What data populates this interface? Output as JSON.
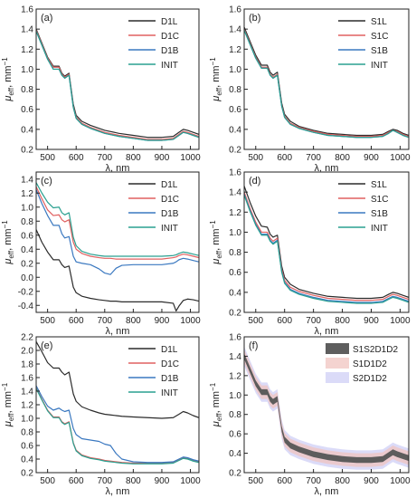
{
  "figure": {
    "x_tick_labels": [
      "500",
      "600",
      "700",
      "800",
      "900",
      "1000"
    ],
    "x_axis_label": "λ, nm",
    "y_axis_label_main": "μ",
    "y_axis_label_sub": "eff",
    "y_axis_label_unit": ", mm",
    "y_axis_label_exp": "−1"
  },
  "chart_data": [
    {
      "panel": "(a)",
      "type": "line",
      "xlim": [
        460,
        1030
      ],
      "ylim": [
        0.2,
        1.6
      ],
      "yticks": [
        0.2,
        0.4,
        0.6,
        0.8,
        1.0,
        1.2,
        1.4,
        1.6
      ],
      "ytick_labels": [
        "0.2",
        "0.4",
        "0.6",
        "0.8",
        "1.0",
        "1.2",
        "1.4",
        "1.6"
      ],
      "legend": "top-right",
      "x": [
        460,
        480,
        500,
        520,
        540,
        550,
        560,
        575,
        590,
        600,
        620,
        650,
        700,
        750,
        800,
        850,
        900,
        940,
        960,
        975,
        990,
        1010,
        1030
      ],
      "series": [
        {
          "name": "D1L",
          "color": "#2b2b2b",
          "values": [
            1.4,
            1.26,
            1.12,
            1.03,
            1.03,
            0.96,
            0.93,
            0.96,
            0.65,
            0.54,
            0.48,
            0.44,
            0.39,
            0.36,
            0.34,
            0.32,
            0.32,
            0.33,
            0.37,
            0.4,
            0.39,
            0.37,
            0.35
          ]
        },
        {
          "name": "D1C",
          "color": "#e06060",
          "values": [
            1.39,
            1.25,
            1.11,
            1.02,
            1.02,
            0.95,
            0.92,
            0.95,
            0.63,
            0.52,
            0.46,
            0.42,
            0.37,
            0.34,
            0.32,
            0.3,
            0.3,
            0.31,
            0.35,
            0.38,
            0.37,
            0.35,
            0.33
          ]
        },
        {
          "name": "D1B",
          "color": "#3a78c0",
          "values": [
            1.38,
            1.24,
            1.1,
            1.0,
            1.0,
            0.94,
            0.91,
            0.94,
            0.62,
            0.51,
            0.45,
            0.41,
            0.36,
            0.33,
            0.31,
            0.29,
            0.29,
            0.3,
            0.34,
            0.37,
            0.36,
            0.34,
            0.32
          ]
        },
        {
          "name": "INIT",
          "color": "#2aa090",
          "values": [
            1.38,
            1.24,
            1.1,
            1.0,
            1.0,
            0.94,
            0.91,
            0.94,
            0.62,
            0.51,
            0.45,
            0.41,
            0.36,
            0.33,
            0.31,
            0.29,
            0.29,
            0.3,
            0.34,
            0.37,
            0.36,
            0.34,
            0.32
          ]
        }
      ]
    },
    {
      "panel": "(b)",
      "type": "line",
      "xlim": [
        460,
        1030
      ],
      "ylim": [
        0.2,
        1.6
      ],
      "yticks": [
        0.2,
        0.4,
        0.6,
        0.8,
        1.0,
        1.2,
        1.4,
        1.6
      ],
      "ytick_labels": [
        "0.2",
        "0.4",
        "0.6",
        "0.8",
        "1.0",
        "1.2",
        "1.4",
        "1.6"
      ],
      "legend": "top-right",
      "x": [
        460,
        480,
        500,
        520,
        540,
        550,
        560,
        575,
        590,
        600,
        620,
        650,
        700,
        750,
        800,
        850,
        900,
        940,
        960,
        975,
        990,
        1010,
        1030
      ],
      "series": [
        {
          "name": "S1L",
          "color": "#2b2b2b",
          "values": [
            1.42,
            1.28,
            1.14,
            1.04,
            1.04,
            0.97,
            0.94,
            0.97,
            0.66,
            0.55,
            0.48,
            0.43,
            0.39,
            0.36,
            0.35,
            0.34,
            0.34,
            0.35,
            0.38,
            0.4,
            0.39,
            0.36,
            0.34
          ]
        },
        {
          "name": "S1C",
          "color": "#e06060",
          "values": [
            1.4,
            1.26,
            1.12,
            1.02,
            1.02,
            0.95,
            0.92,
            0.95,
            0.64,
            0.53,
            0.46,
            0.42,
            0.38,
            0.35,
            0.34,
            0.33,
            0.33,
            0.34,
            0.37,
            0.39,
            0.38,
            0.35,
            0.33
          ]
        },
        {
          "name": "S1B",
          "color": "#3a78c0",
          "values": [
            1.39,
            1.25,
            1.11,
            1.01,
            1.01,
            0.94,
            0.91,
            0.94,
            0.63,
            0.52,
            0.45,
            0.41,
            0.37,
            0.34,
            0.33,
            0.32,
            0.32,
            0.33,
            0.36,
            0.39,
            0.37,
            0.34,
            0.32
          ]
        },
        {
          "name": "INIT",
          "color": "#2aa090",
          "values": [
            1.39,
            1.25,
            1.11,
            1.01,
            1.01,
            0.94,
            0.91,
            0.94,
            0.63,
            0.52,
            0.45,
            0.41,
            0.37,
            0.34,
            0.33,
            0.32,
            0.32,
            0.33,
            0.36,
            0.39,
            0.37,
            0.34,
            0.32
          ]
        }
      ]
    },
    {
      "panel": "(c)",
      "type": "line",
      "xlim": [
        460,
        1030
      ],
      "ylim": [
        -0.5,
        1.5
      ],
      "yticks": [
        -0.4,
        -0.2,
        0.0,
        0.2,
        0.4,
        0.6,
        0.8,
        1.0,
        1.2,
        1.4
      ],
      "ytick_labels": [
        "-0.4",
        "-0.2",
        "0.0",
        "0.2",
        "0.4",
        "0.6",
        "0.8",
        "1.0",
        "1.2",
        "1.4"
      ],
      "legend": "top-right",
      "x": [
        460,
        480,
        500,
        520,
        540,
        550,
        560,
        575,
        590,
        600,
        620,
        650,
        680,
        700,
        720,
        740,
        760,
        800,
        850,
        900,
        940,
        950,
        960,
        975,
        990,
        1010,
        1030
      ],
      "series": [
        {
          "name": "D1L",
          "color": "#2b2b2b",
          "values": [
            0.68,
            0.5,
            0.36,
            0.25,
            0.25,
            0.18,
            0.14,
            0.16,
            -0.14,
            -0.22,
            -0.27,
            -0.3,
            -0.32,
            -0.33,
            -0.34,
            -0.34,
            -0.35,
            -0.35,
            -0.35,
            -0.35,
            -0.37,
            -0.48,
            -0.41,
            -0.33,
            -0.31,
            -0.32,
            -0.34
          ]
        },
        {
          "name": "D1C",
          "color": "#e06060",
          "values": [
            1.29,
            1.12,
            0.96,
            0.88,
            0.89,
            0.82,
            0.79,
            0.82,
            0.5,
            0.4,
            0.34,
            0.3,
            0.28,
            0.27,
            0.27,
            0.26,
            0.26,
            0.26,
            0.26,
            0.26,
            0.28,
            0.29,
            0.31,
            0.33,
            0.32,
            0.3,
            0.28
          ]
        },
        {
          "name": "D1B",
          "color": "#3a78c0",
          "values": [
            1.25,
            1.05,
            0.88,
            0.74,
            0.74,
            0.62,
            0.56,
            0.58,
            0.3,
            0.22,
            0.2,
            0.18,
            0.12,
            0.06,
            0.04,
            0.13,
            0.17,
            0.18,
            0.18,
            0.18,
            0.2,
            0.22,
            0.25,
            0.27,
            0.26,
            0.24,
            0.22
          ]
        },
        {
          "name": "INIT",
          "color": "#2aa090",
          "values": [
            1.35,
            1.2,
            1.07,
            0.99,
            1.0,
            0.92,
            0.89,
            0.92,
            0.57,
            0.45,
            0.37,
            0.33,
            0.31,
            0.3,
            0.3,
            0.3,
            0.3,
            0.3,
            0.3,
            0.3,
            0.31,
            0.32,
            0.34,
            0.36,
            0.35,
            0.33,
            0.31
          ]
        }
      ]
    },
    {
      "panel": "(d)",
      "type": "line",
      "xlim": [
        460,
        1030
      ],
      "ylim": [
        0.2,
        1.6
      ],
      "yticks": [
        0.2,
        0.4,
        0.6,
        0.8,
        1.0,
        1.2,
        1.4,
        1.6
      ],
      "ytick_labels": [
        "0.2",
        "0.4",
        "0.6",
        "0.8",
        "1.0",
        "1.2",
        "1.4",
        "1.6"
      ],
      "legend": "top-right",
      "x": [
        460,
        480,
        500,
        520,
        540,
        550,
        560,
        575,
        590,
        600,
        620,
        650,
        700,
        750,
        800,
        850,
        900,
        940,
        960,
        975,
        990,
        1010,
        1030
      ],
      "series": [
        {
          "name": "S1L",
          "color": "#2b2b2b",
          "values": [
            1.46,
            1.3,
            1.16,
            1.06,
            1.05,
            0.98,
            0.95,
            0.97,
            0.66,
            0.55,
            0.48,
            0.43,
            0.39,
            0.36,
            0.35,
            0.34,
            0.34,
            0.35,
            0.38,
            0.4,
            0.39,
            0.37,
            0.35
          ]
        },
        {
          "name": "S1C",
          "color": "#e06060",
          "values": [
            1.4,
            1.24,
            1.1,
            1.0,
            1.0,
            0.94,
            0.91,
            0.94,
            0.63,
            0.52,
            0.45,
            0.41,
            0.37,
            0.34,
            0.33,
            0.32,
            0.32,
            0.33,
            0.36,
            0.38,
            0.37,
            0.35,
            0.33
          ]
        },
        {
          "name": "S1B",
          "color": "#3a78c0",
          "values": [
            1.38,
            1.22,
            1.08,
            0.98,
            0.98,
            0.92,
            0.89,
            0.92,
            0.61,
            0.5,
            0.43,
            0.39,
            0.35,
            0.32,
            0.31,
            0.3,
            0.3,
            0.31,
            0.34,
            0.36,
            0.35,
            0.33,
            0.31
          ]
        },
        {
          "name": "INIT",
          "color": "#2aa090",
          "values": [
            1.37,
            1.21,
            1.07,
            0.97,
            0.97,
            0.91,
            0.88,
            0.91,
            0.6,
            0.49,
            0.42,
            0.38,
            0.34,
            0.31,
            0.3,
            0.29,
            0.29,
            0.3,
            0.33,
            0.35,
            0.34,
            0.32,
            0.3
          ]
        }
      ]
    },
    {
      "panel": "(e)",
      "type": "line",
      "xlim": [
        460,
        1030
      ],
      "ylim": [
        0.2,
        2.2
      ],
      "yticks": [
        0.2,
        0.4,
        0.6,
        0.8,
        1.0,
        1.2,
        1.4,
        1.6,
        1.8,
        2.0,
        2.2
      ],
      "ytick_labels": [
        "0.2",
        "0.4",
        "0.6",
        "0.8",
        "1.0",
        "1.2",
        "1.4",
        "1.6",
        "1.8",
        "2.0",
        "2.2"
      ],
      "legend": "top-right",
      "x": [
        460,
        480,
        500,
        520,
        540,
        550,
        560,
        575,
        590,
        600,
        620,
        650,
        680,
        700,
        720,
        740,
        760,
        800,
        850,
        900,
        940,
        960,
        975,
        990,
        1010,
        1030
      ],
      "series": [
        {
          "name": "D1L",
          "color": "#2b2b2b",
          "values": [
            2.13,
            1.98,
            1.82,
            1.74,
            1.74,
            1.68,
            1.64,
            1.68,
            1.36,
            1.25,
            1.17,
            1.12,
            1.08,
            1.06,
            1.05,
            1.04,
            1.03,
            1.02,
            1.01,
            1.0,
            1.01,
            1.06,
            1.1,
            1.08,
            1.04,
            1.01
          ]
        },
        {
          "name": "D1C",
          "color": "#e06060",
          "values": [
            1.45,
            1.28,
            1.12,
            1.02,
            1.02,
            0.95,
            0.92,
            0.95,
            0.64,
            0.53,
            0.46,
            0.42,
            0.4,
            0.38,
            0.37,
            0.36,
            0.35,
            0.34,
            0.34,
            0.34,
            0.35,
            0.39,
            0.42,
            0.41,
            0.38,
            0.36
          ]
        },
        {
          "name": "D1B",
          "color": "#3a78c0",
          "values": [
            1.48,
            1.32,
            1.18,
            1.12,
            1.15,
            1.12,
            1.1,
            1.12,
            0.85,
            0.76,
            0.7,
            0.68,
            0.66,
            0.62,
            0.6,
            0.48,
            0.4,
            0.36,
            0.35,
            0.35,
            0.36,
            0.4,
            0.43,
            0.42,
            0.39,
            0.37
          ]
        },
        {
          "name": "INIT",
          "color": "#2aa090",
          "values": [
            1.44,
            1.27,
            1.11,
            1.01,
            1.01,
            0.94,
            0.91,
            0.94,
            0.63,
            0.52,
            0.45,
            0.41,
            0.39,
            0.37,
            0.36,
            0.35,
            0.34,
            0.33,
            0.33,
            0.33,
            0.34,
            0.38,
            0.41,
            0.4,
            0.37,
            0.35
          ]
        }
      ]
    },
    {
      "panel": "(f)",
      "type": "area",
      "xlim": [
        460,
        1030
      ],
      "ylim": [
        0.2,
        1.6
      ],
      "yticks": [
        0.2,
        0.4,
        0.6,
        0.8,
        1.0,
        1.2,
        1.4,
        1.6
      ],
      "ytick_labels": [
        "0.2",
        "0.4",
        "0.6",
        "0.8",
        "1.0",
        "1.2",
        "1.4",
        "1.6"
      ],
      "legend": "top-right",
      "x": [
        460,
        480,
        500,
        520,
        540,
        550,
        560,
        575,
        590,
        600,
        620,
        650,
        700,
        750,
        800,
        850,
        900,
        940,
        960,
        975,
        990,
        1010,
        1030
      ],
      "center": [
        1.4,
        1.26,
        1.12,
        1.03,
        1.03,
        0.96,
        0.93,
        0.96,
        0.65,
        0.54,
        0.48,
        0.44,
        0.39,
        0.36,
        0.34,
        0.33,
        0.33,
        0.34,
        0.38,
        0.41,
        0.39,
        0.37,
        0.35
      ],
      "series": [
        {
          "name": "S1S2D1D2",
          "color": "#555555",
          "halfwidth": 0.03
        },
        {
          "name": "S1D1D2",
          "color": "#f0c4c0",
          "halfwidth": 0.07
        },
        {
          "name": "S2D1D2",
          "color": "#cfcff5",
          "halfwidth": 0.1
        }
      ]
    }
  ]
}
